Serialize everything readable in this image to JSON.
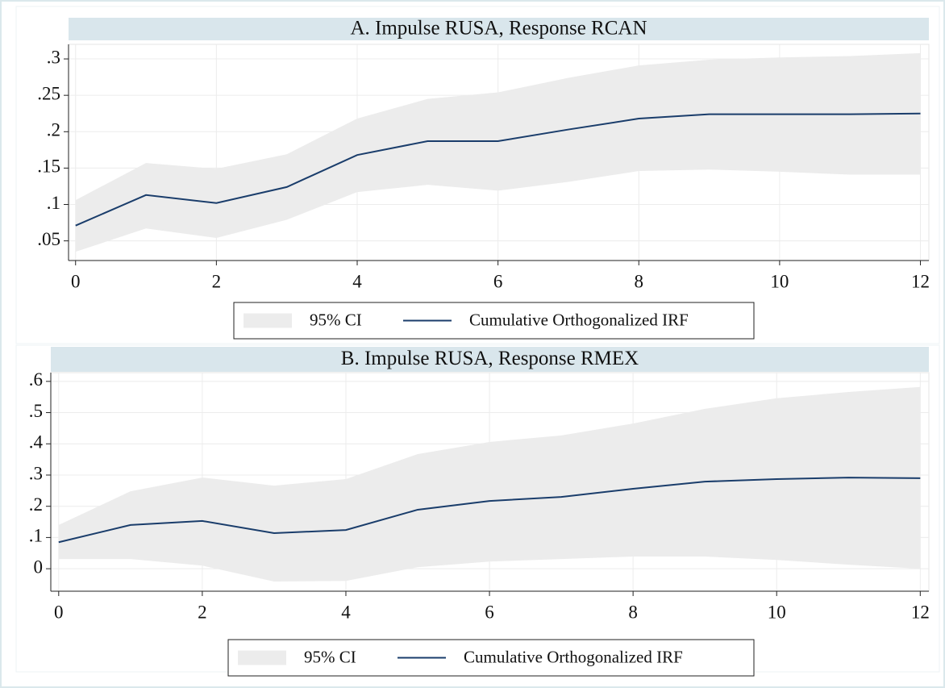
{
  "chart_data": [
    {
      "type": "line",
      "title": "A. Impulse RUSA, Response RCAN",
      "x": [
        0,
        1,
        2,
        3,
        4,
        5,
        6,
        7,
        8,
        9,
        10,
        11,
        12
      ],
      "series": [
        {
          "name": "95% CI",
          "color": "#ececec",
          "lower": [
            0.035,
            0.067,
            0.054,
            0.079,
            0.117,
            0.127,
            0.119,
            0.131,
            0.146,
            0.148,
            0.145,
            0.141,
            0.141
          ],
          "upper": [
            0.106,
            0.157,
            0.149,
            0.169,
            0.218,
            0.245,
            0.254,
            0.274,
            0.291,
            0.299,
            0.302,
            0.304,
            0.308
          ]
        },
        {
          "name": "Cumulative Orthogonalized IRF",
          "color": "#1a3d6b",
          "values": [
            0.071,
            0.113,
            0.102,
            0.124,
            0.168,
            0.187,
            0.187,
            0.203,
            0.218,
            0.224,
            0.224,
            0.224,
            0.225
          ]
        }
      ],
      "xlim": [
        -0.1,
        12.12
      ],
      "xticks": [
        0,
        2,
        4,
        6,
        8,
        10,
        12
      ],
      "ylim": [
        0.023,
        0.32
      ],
      "yticks": [
        {
          "value": 0.05,
          "label": ".05"
        },
        {
          "value": 0.1,
          "label": ".1"
        },
        {
          "value": 0.15,
          "label": ".15"
        },
        {
          "value": 0.2,
          "label": ".2"
        },
        {
          "value": 0.25,
          "label": ".25"
        },
        {
          "value": 0.3,
          "label": ".3"
        }
      ],
      "grid": true
    },
    {
      "type": "line",
      "title": "B. Impulse RUSA, Response RMEX",
      "x": [
        0,
        1,
        2,
        3,
        4,
        5,
        6,
        7,
        8,
        9,
        10,
        11,
        12
      ],
      "series": [
        {
          "name": "95% CI",
          "color": "#ececec",
          "lower": [
            0.031,
            0.031,
            0.01,
            -0.041,
            -0.039,
            0.005,
            0.023,
            0.031,
            0.039,
            0.039,
            0.028,
            0.013,
            0.0
          ],
          "upper": [
            0.14,
            0.248,
            0.292,
            0.266,
            0.287,
            0.367,
            0.406,
            0.427,
            0.465,
            0.512,
            0.546,
            0.566,
            0.582
          ]
        },
        {
          "name": "Cumulative Orthogonalized IRF",
          "color": "#1a3d6b",
          "values": [
            0.085,
            0.14,
            0.153,
            0.114,
            0.124,
            0.189,
            0.217,
            0.23,
            0.256,
            0.279,
            0.287,
            0.292,
            0.29
          ]
        }
      ],
      "xlim": [
        -0.11,
        12.12
      ],
      "xticks": [
        0,
        2,
        4,
        6,
        8,
        10,
        12
      ],
      "ylim": [
        -0.072,
        0.628
      ],
      "yticks": [
        0,
        {
          "value": 0.1,
          "label": ".1"
        },
        {
          "value": 0.2,
          "label": ".2"
        },
        {
          "value": 0.3,
          "label": ".3"
        },
        {
          "value": 0.4,
          "label": ".4"
        },
        {
          "value": 0.5,
          "label": ".5"
        },
        {
          "value": 0.6,
          "label": ".6"
        }
      ],
      "grid": true
    }
  ]
}
